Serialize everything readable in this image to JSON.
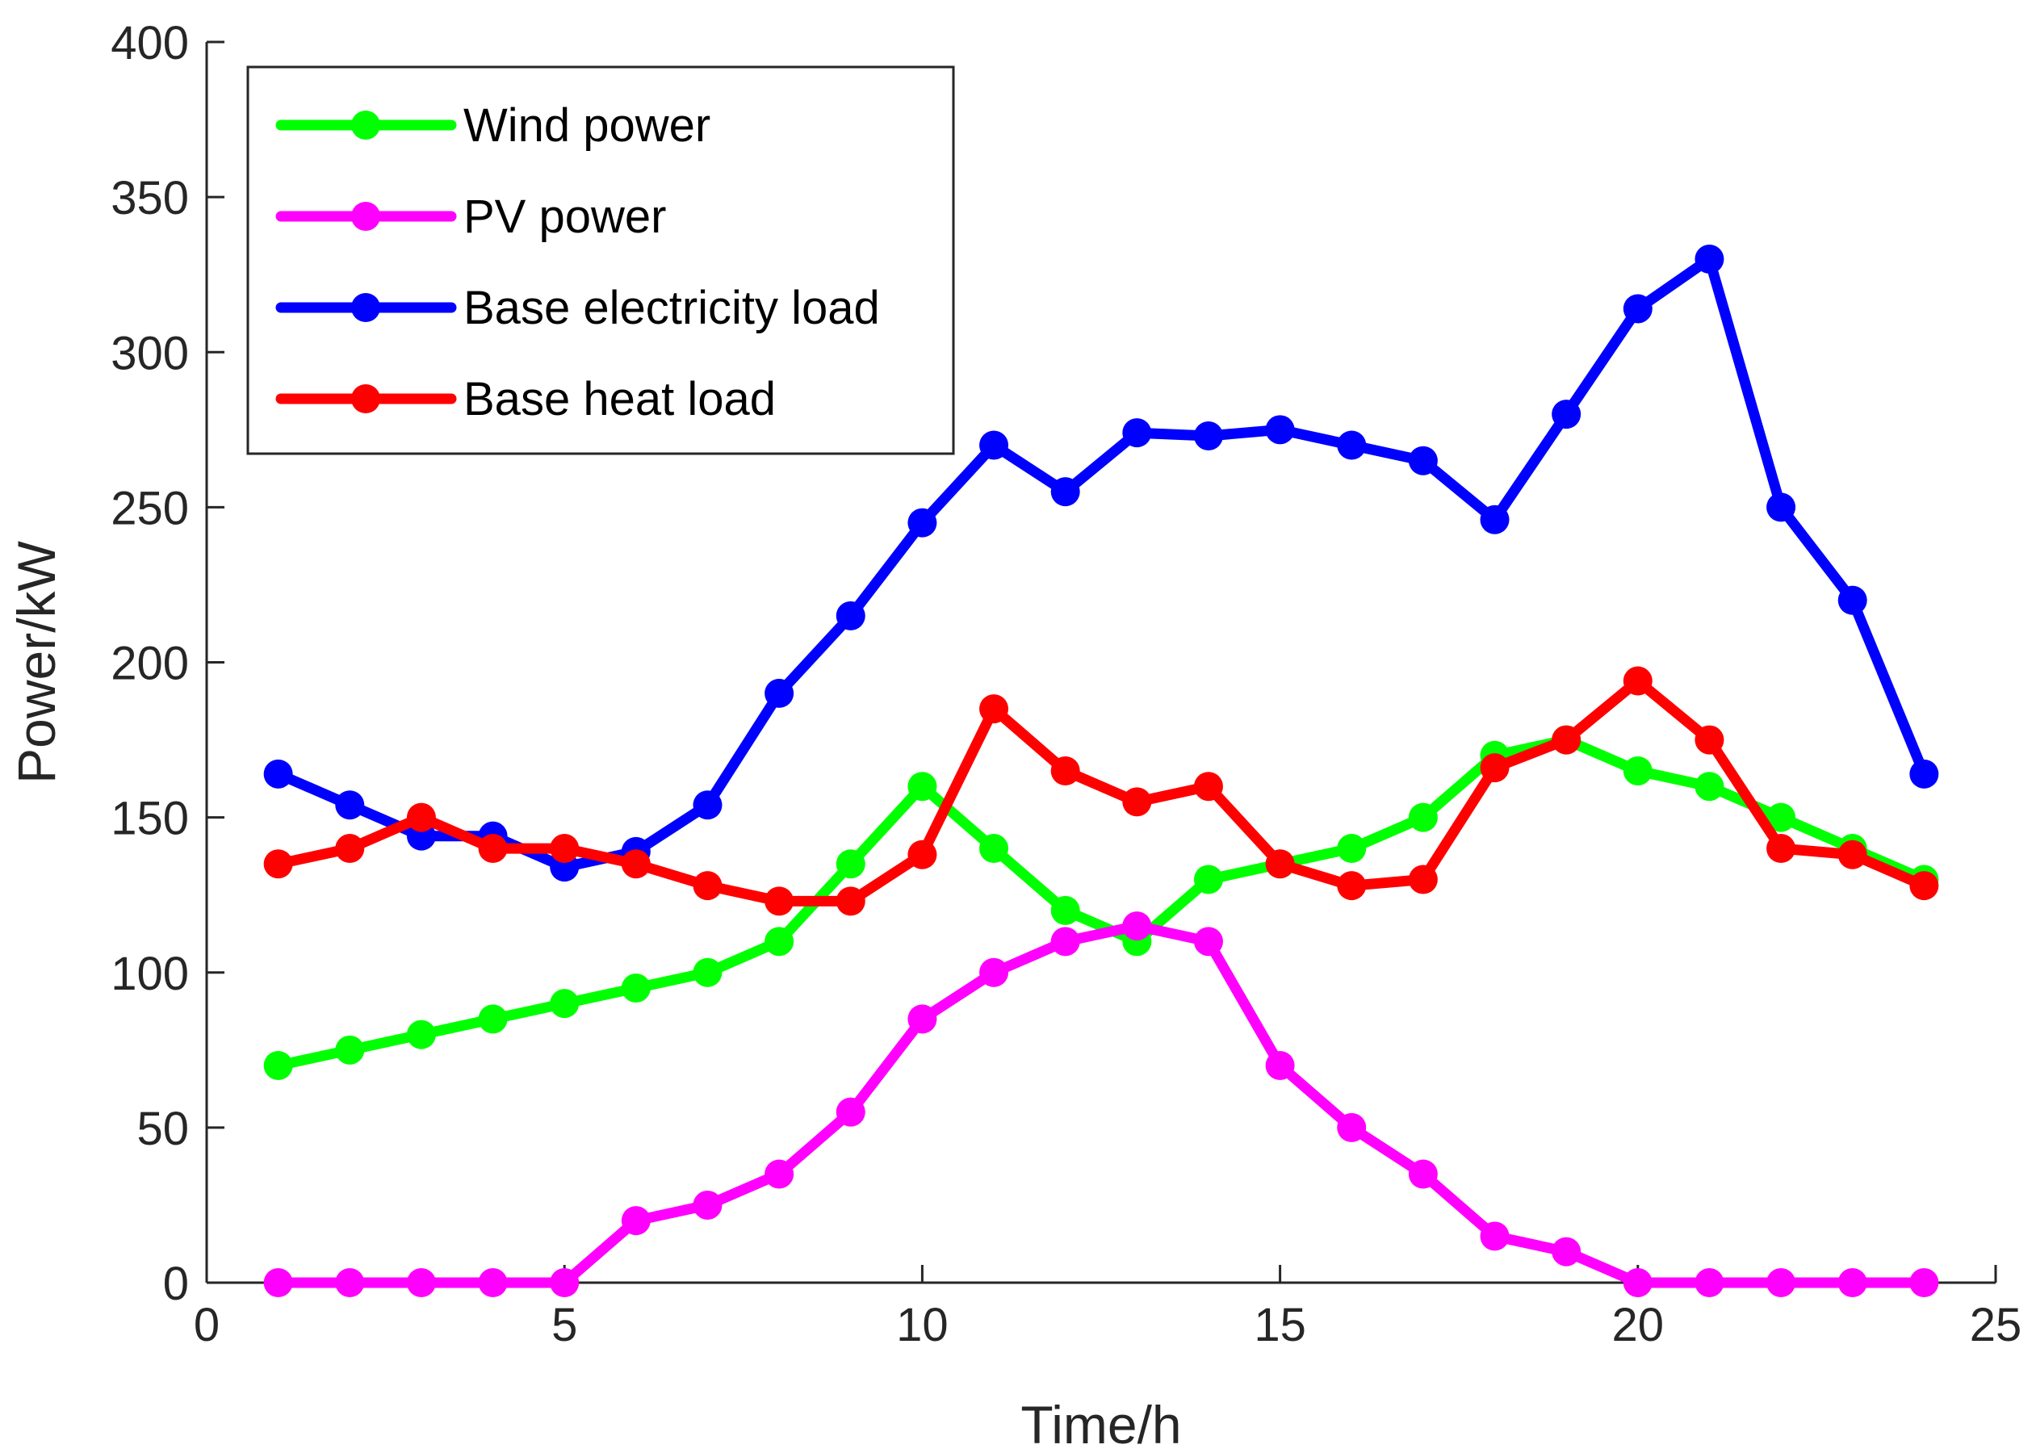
{
  "chart_data": {
    "type": "line",
    "title": "",
    "xlabel": "Time/h",
    "ylabel": "Power/kW",
    "xlim": [
      0,
      25
    ],
    "ylim": [
      0,
      400
    ],
    "xticks": [
      0,
      5,
      10,
      15,
      20,
      25
    ],
    "yticks": [
      0,
      50,
      100,
      150,
      200,
      250,
      300,
      350,
      400
    ],
    "grid": false,
    "legend_position": "top-left",
    "x": [
      1,
      2,
      3,
      4,
      5,
      6,
      7,
      8,
      9,
      10,
      11,
      12,
      13,
      14,
      15,
      16,
      17,
      18,
      19,
      20,
      21,
      22,
      23,
      24
    ],
    "series": [
      {
        "name": "Wind power",
        "color": "#00ff00",
        "values": [
          70,
          75,
          80,
          85,
          90,
          95,
          100,
          110,
          135,
          160,
          140,
          120,
          110,
          130,
          135,
          140,
          150,
          170,
          175,
          165,
          160,
          150,
          140,
          130
        ]
      },
      {
        "name": "PV power",
        "color": "#ff00ff",
        "values": [
          0,
          0,
          0,
          0,
          0,
          20,
          25,
          35,
          55,
          85,
          100,
          110,
          115,
          110,
          70,
          50,
          35,
          15,
          10,
          0,
          0,
          0,
          0,
          0
        ]
      },
      {
        "name": "Base electricity load",
        "color": "#0000ff",
        "values": [
          164,
          154,
          144,
          144,
          134,
          139,
          154,
          190,
          215,
          245,
          270,
          255,
          274,
          273,
          275,
          270,
          265,
          246,
          280,
          314,
          330,
          250,
          220,
          164
        ]
      },
      {
        "name": "Base heat load",
        "color": "#ff0000",
        "values": [
          135,
          140,
          150,
          140,
          140,
          135,
          128,
          123,
          123,
          138,
          185,
          165,
          155,
          160,
          135,
          128,
          130,
          166,
          175,
          194,
          175,
          140,
          138,
          128
        ]
      }
    ]
  }
}
